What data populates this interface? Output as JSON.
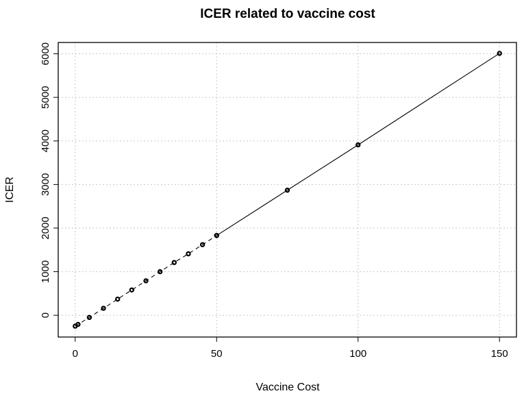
{
  "chart_data": {
    "type": "line",
    "title": "ICER related to vaccine cost",
    "xlabel": "Vaccine Cost",
    "ylabel": "ICER",
    "xlim": [
      -6,
      156
    ],
    "ylim": [
      -500,
      6260
    ],
    "xticks": [
      0,
      50,
      100,
      150
    ],
    "yticks": [
      0,
      1000,
      2000,
      3000,
      4000,
      5000,
      6000
    ],
    "grid": true,
    "series": [
      {
        "line_style": "dashed",
        "x": [
          0,
          1,
          5,
          10,
          15,
          20,
          25,
          30,
          35,
          40,
          45,
          50
        ],
        "y": [
          -250,
          -210,
          -50,
          160,
          370,
          580,
          790,
          1000,
          1210,
          1410,
          1620,
          1830
        ]
      },
      {
        "line_style": "solid",
        "x": [
          50,
          75,
          100,
          150
        ],
        "y": [
          1830,
          2870,
          3910,
          6010
        ]
      }
    ]
  }
}
